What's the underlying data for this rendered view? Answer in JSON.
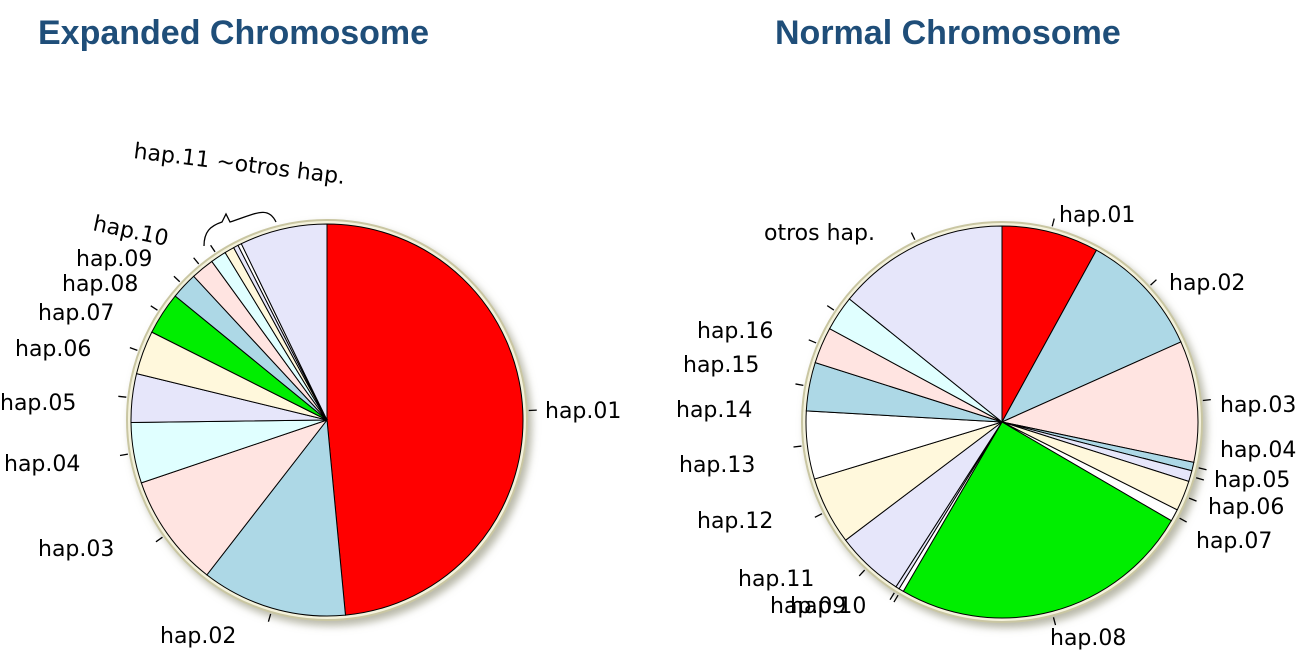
{
  "chart_data": [
    {
      "type": "pie",
      "title": "Expanded Chromosome",
      "start_angle_deg": 0,
      "slices": [
        {
          "label": "hap.01",
          "value": 48.5,
          "color": "#ff0000"
        },
        {
          "label": "hap.02",
          "value": 12.0,
          "color": "#add8e6"
        },
        {
          "label": "hap.03",
          "value": 9.3,
          "color": "#ffe4e1"
        },
        {
          "label": "hap.04",
          "value": 5.0,
          "color": "#e0ffff"
        },
        {
          "label": "hap.05",
          "value": 4.0,
          "color": "#e6e6fa"
        },
        {
          "label": "hap.06",
          "value": 3.6,
          "color": "#fff8dc"
        },
        {
          "label": "hap.07",
          "value": 3.5,
          "color": "#00ee00"
        },
        {
          "label": "hap.08",
          "value": 2.2,
          "color": "#add8e6"
        },
        {
          "label": "hap.09",
          "value": 1.9,
          "color": "#ffe4e1"
        },
        {
          "label": "hap.10",
          "value": 1.3,
          "color": "#e0ffff"
        },
        {
          "label": "hap.11",
          "value": 0.8,
          "color": "#fff8dc"
        },
        {
          "label": "",
          "value": 0.4,
          "color": "#e6e6fa"
        },
        {
          "label": "",
          "value": 0.3,
          "color": "#ffffff"
        },
        {
          "label": "otros hap.",
          "value": 7.2,
          "color": "#e6e6fa"
        }
      ],
      "annotation": "hap.11 ~otros hap."
    },
    {
      "type": "pie",
      "title": "Normal Chromosome",
      "start_angle_deg": 0,
      "slices": [
        {
          "label": "hap.01",
          "value": 8.0,
          "color": "#ff0000"
        },
        {
          "label": "hap.02",
          "value": 10.3,
          "color": "#add8e6"
        },
        {
          "label": "hap.03",
          "value": 10.0,
          "color": "#ffe4e1"
        },
        {
          "label": "hap.04",
          "value": 0.7,
          "color": "#add8e6"
        },
        {
          "label": "hap.05",
          "value": 0.9,
          "color": "#e6e6fa"
        },
        {
          "label": "hap.06",
          "value": 2.5,
          "color": "#fff8dc"
        },
        {
          "label": "hap.07",
          "value": 1.0,
          "color": "#ffffff"
        },
        {
          "label": "hap.08",
          "value": 25.0,
          "color": "#00ee00"
        },
        {
          "label": "hap.09",
          "value": 0.4,
          "color": "#ffffff"
        },
        {
          "label": "hap.10",
          "value": 0.3,
          "color": "#e6e6fa"
        },
        {
          "label": "hap.11",
          "value": 5.6,
          "color": "#e6e6fa"
        },
        {
          "label": "hap.12",
          "value": 5.6,
          "color": "#fff8dc"
        },
        {
          "label": "hap.13",
          "value": 5.6,
          "color": "#ffffff"
        },
        {
          "label": "hap.14",
          "value": 4.0,
          "color": "#add8e6"
        },
        {
          "label": "hap.15",
          "value": 3.0,
          "color": "#ffe4e1"
        },
        {
          "label": "hap.16",
          "value": 2.9,
          "color": "#e0ffff"
        },
        {
          "label": "otros hap.",
          "value": 14.2,
          "color": "#e6e6fa"
        }
      ]
    }
  ]
}
